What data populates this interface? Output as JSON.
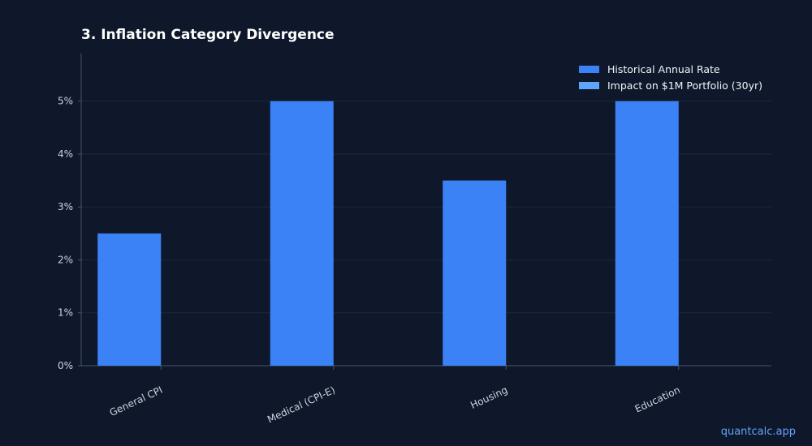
{
  "chart_data": {
    "type": "bar",
    "title": "3. Inflation Category Divergence",
    "categories": [
      "General CPI",
      "Medical (CPI-E)",
      "Housing",
      "Education"
    ],
    "series": [
      {
        "name": "Historical Annual Rate",
        "values": [
          2.5,
          5.0,
          3.5,
          5.0
        ],
        "color": "#3b82f6"
      },
      {
        "name": "Impact on $1M Portfolio (30yr)",
        "values": [
          0,
          0,
          0,
          0
        ],
        "color": "#60a5fa"
      }
    ],
    "xlabel": "",
    "ylabel": "",
    "ylim": [
      0,
      5.9
    ],
    "yticks": [
      "0%",
      "1%",
      "2%",
      "3%",
      "4%",
      "5%"
    ],
    "grid": true,
    "legend_position": "top-right"
  },
  "watermark": "quantcalc.app",
  "colors": {
    "background": "#0f172a",
    "grid": "#1e293b",
    "axis": "#475569",
    "tick_text": "#cbd5e1"
  }
}
